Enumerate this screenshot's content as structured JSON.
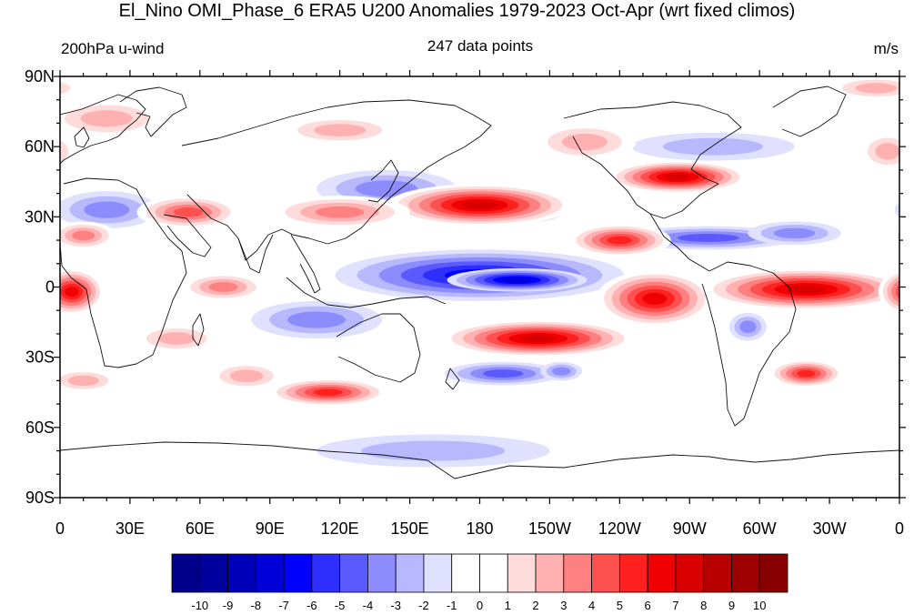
{
  "title": "El_Nino OMI_Phase_6 ERA5 U200 Anomalies 1979-2023 Oct-Apr (wrt fixed climos)",
  "left_label": "200hPa u-wind",
  "center_label": "247 data points",
  "right_label": "m/s",
  "lat_labels": [
    "90N",
    "60N",
    "30N",
    "0",
    "30S",
    "60S",
    "90S"
  ],
  "lon_labels": [
    "0",
    "30E",
    "60E",
    "90E",
    "120E",
    "150E",
    "180",
    "150W",
    "120W",
    "90W",
    "60W",
    "30W",
    "0"
  ],
  "colorbar": {
    "labels": [
      "-10",
      "-9",
      "-8",
      "-7",
      "-6",
      "-5",
      "-4",
      "-3",
      "-2",
      "-1",
      "0",
      "1",
      "2",
      "3",
      "4",
      "5",
      "6",
      "7",
      "8",
      "9",
      "10"
    ],
    "colors": [
      "#00008b",
      "#00009c",
      "#0000b8",
      "#0000d8",
      "#0000ff",
      "#2e2eff",
      "#5a5aff",
      "#8c8cff",
      "#b8b8ff",
      "#e0e0ff",
      "#ffffff",
      "#ffffff",
      "#ffdcdc",
      "#ffb0b0",
      "#ff8080",
      "#ff5050",
      "#ff2020",
      "#f00000",
      "#d80000",
      "#b80000",
      "#9c0000",
      "#860000"
    ]
  },
  "anomaly_blobs": [
    {
      "lon": 180,
      "lat": 5,
      "value": -6,
      "rlon": 62,
      "rlat": 11
    },
    {
      "lon": 196,
      "lat": 3,
      "value": -7,
      "rlon": 30,
      "rlat": 5
    },
    {
      "lon": 110,
      "lat": -14,
      "value": -3,
      "rlon": 28,
      "rlat": 8
    },
    {
      "lon": 140,
      "lat": 42,
      "value": -3,
      "rlon": 30,
      "rlat": 8
    },
    {
      "lon": 20,
      "lat": 33,
      "value": -3,
      "rlon": 22,
      "rlat": 8
    },
    {
      "lon": 278,
      "lat": 21,
      "value": -4,
      "rlon": 38,
      "rlat": 5
    },
    {
      "lon": 315,
      "lat": 23,
      "value": -3,
      "rlon": 20,
      "rlat": 5
    },
    {
      "lon": 205,
      "lat": 34,
      "value": -3,
      "rlon": 12,
      "rlat": 6
    },
    {
      "lon": 280,
      "lat": 60,
      "value": -2,
      "rlon": 35,
      "rlat": 6
    },
    {
      "lon": 190,
      "lat": -37,
      "value": -4,
      "rlon": 25,
      "rlat": 5
    },
    {
      "lon": 215,
      "lat": -36,
      "value": -3,
      "rlon": 9,
      "rlat": 4
    },
    {
      "lon": 295,
      "lat": -17,
      "value": -3,
      "rlon": 8,
      "rlat": 6
    },
    {
      "lon": 160,
      "lat": -70,
      "value": -2,
      "rlon": 50,
      "rlat": 7
    },
    {
      "lon": 180,
      "lat": 35,
      "value": 8,
      "rlon": 40,
      "rlat": 9
    },
    {
      "lon": 120,
      "lat": 32,
      "value": 4,
      "rlon": 30,
      "rlat": 7
    },
    {
      "lon": 240,
      "lat": 20,
      "value": 6,
      "rlon": 22,
      "rlat": 7
    },
    {
      "lon": 265,
      "lat": 47,
      "value": 8,
      "rlon": 30,
      "rlat": 7
    },
    {
      "lon": 205,
      "lat": -22,
      "value": 8,
      "rlon": 42,
      "rlat": 8
    },
    {
      "lon": 255,
      "lat": -5,
      "value": 7,
      "rlon": 25,
      "rlat": 12
    },
    {
      "lon": 320,
      "lat": -1,
      "value": 8,
      "rlon": 45,
      "rlat": 9
    },
    {
      "lon": 5,
      "lat": -2,
      "value": 7,
      "rlon": 14,
      "rlat": 10
    },
    {
      "lon": 55,
      "lat": 32,
      "value": 5,
      "rlon": 22,
      "rlat": 7
    },
    {
      "lon": 70,
      "lat": 0,
      "value": 4,
      "rlon": 18,
      "rlat": 6
    },
    {
      "lon": 115,
      "lat": -45,
      "value": 6,
      "rlon": 26,
      "rlat": 6
    },
    {
      "lon": 320,
      "lat": -37,
      "value": 6,
      "rlon": 16,
      "rlat": 6
    },
    {
      "lon": 120,
      "lat": 67,
      "value": 3,
      "rlon": 25,
      "rlat": 6
    },
    {
      "lon": 20,
      "lat": 72,
      "value": 3,
      "rlon": 25,
      "rlat": 8
    },
    {
      "lon": 225,
      "lat": 62,
      "value": 3,
      "rlon": 22,
      "rlat": 8
    },
    {
      "lon": 50,
      "lat": -22,
      "value": 3,
      "rlon": 18,
      "rlat": 6
    },
    {
      "lon": 80,
      "lat": -38,
      "value": 3,
      "rlon": 16,
      "rlat": 6
    },
    {
      "lon": 355,
      "lat": 58,
      "value": 3,
      "rlon": 12,
      "rlat": 8
    },
    {
      "lon": 10,
      "lat": 22,
      "value": 4,
      "rlon": 14,
      "rlat": 6
    },
    {
      "lon": 350,
      "lat": 85,
      "value": 3,
      "rlon": 20,
      "rlat": 5
    },
    {
      "lon": 10,
      "lat": -40,
      "value": 3,
      "rlon": 15,
      "rlat": 5
    }
  ]
}
